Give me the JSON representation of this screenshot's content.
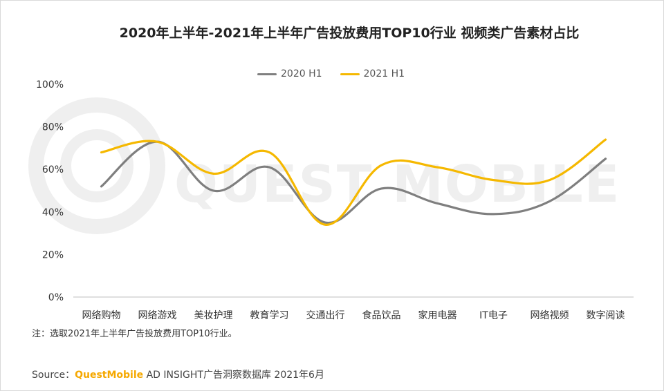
{
  "title": "2020年上半年-2021年上半年广告投放费用TOP10行业 视频类广告素材占比",
  "note": "注：选取2021年上半年广告投放费用TOP10行业。",
  "source": {
    "prefix": "Source：",
    "brand": "QuestMobile",
    "suffix": " AD INSIGHT广告洞察数据库 2021年6月"
  },
  "watermark": {
    "text": "QUEST MOBILE"
  },
  "colors": {
    "series_2020": "#7f7f7f",
    "series_2021": "#f5b800",
    "axis": "#bfbfbf"
  },
  "chart_data": {
    "type": "line",
    "title": "2020年上半年-2021年上半年广告投放费用TOP10行业 视频类广告素材占比",
    "categories": [
      "网络购物",
      "网络游戏",
      "美妆护理",
      "教育学习",
      "交通出行",
      "食品饮品",
      "家用电器",
      "IT电子",
      "网络视频",
      "数字阅读"
    ],
    "series": [
      {
        "name": "2020 H1",
        "color": "#7f7f7f",
        "values": [
          52,
          73,
          50,
          61,
          35,
          51,
          44,
          39,
          45,
          65
        ]
      },
      {
        "name": "2021 H1",
        "color": "#f5b800",
        "values": [
          68,
          73,
          58,
          68,
          34,
          62,
          61,
          55,
          55,
          74
        ]
      }
    ],
    "y_ticks": [
      "0%",
      "20%",
      "40%",
      "60%",
      "80%",
      "100%"
    ],
    "ylim": [
      0,
      100
    ],
    "grid": false,
    "legend_position": "top-center",
    "smooth": true
  }
}
